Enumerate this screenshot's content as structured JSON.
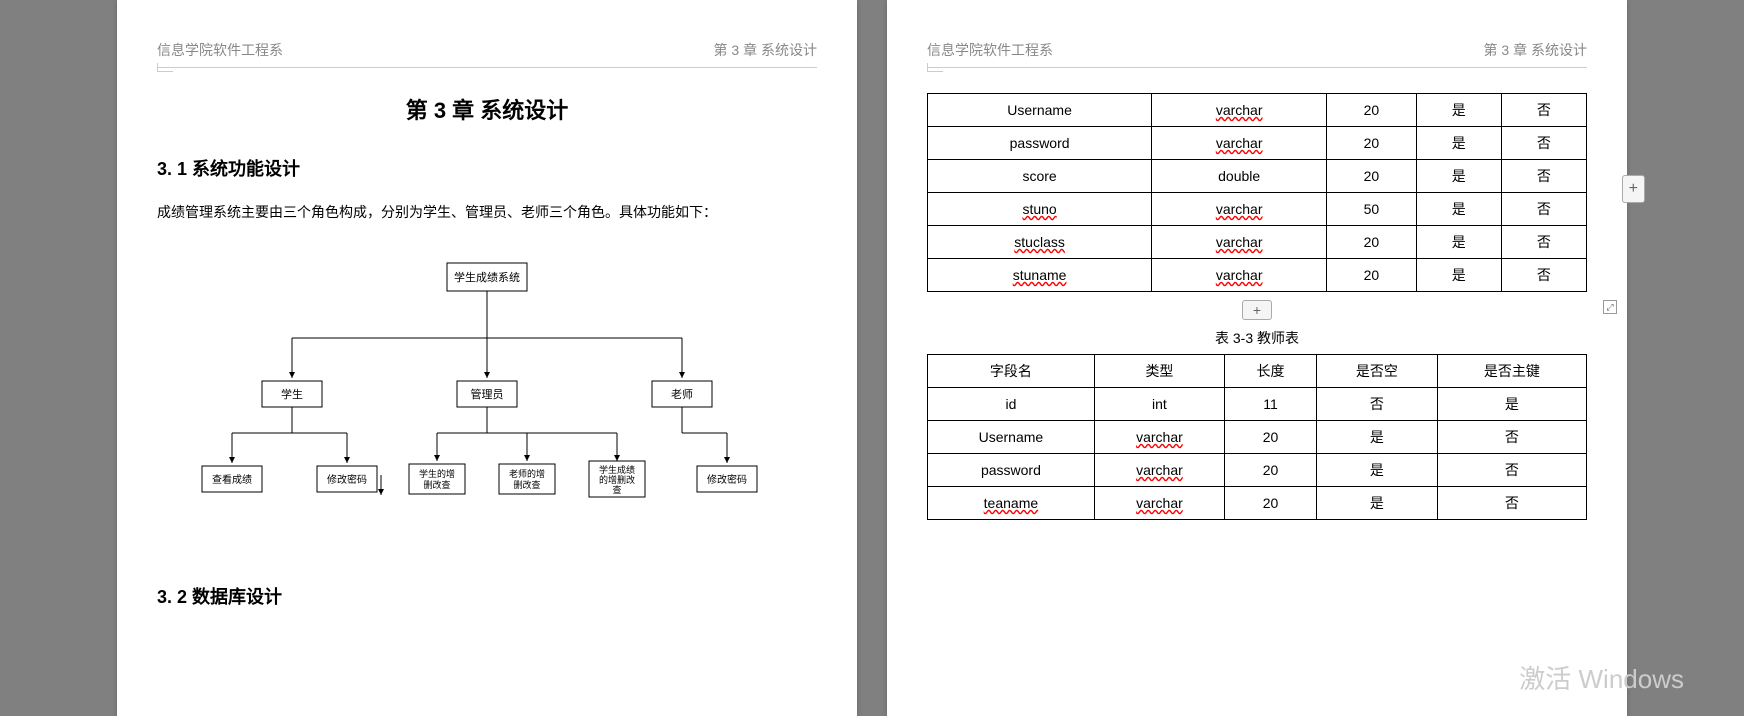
{
  "header": {
    "left": "信息学院软件工程系",
    "right": "第 3 章  系统设计"
  },
  "chapter_title": "第 3 章  系统设计",
  "section1_title": "3. 1 系统功能设计",
  "section1_body": "成绩管理系统主要由三个角色构成，分别为学生、管理员、老师三个角色。具体功能如下：",
  "section2_title": "3. 2 数据库设计",
  "flowchart": {
    "root": "学生成绩系统",
    "level2": [
      "学生",
      "管理员",
      "老师"
    ],
    "student_children": [
      "查看成绩",
      "修改密码"
    ],
    "admin_children": [
      "学生的增删改查",
      "老师的增删改查",
      "学生成绩的增删改查"
    ],
    "teacher_children": [
      "修改密码"
    ],
    "box_stroke": "#000000",
    "box_fill": "#ffffff",
    "line_color": "#000000",
    "font_size": 11
  },
  "table1": {
    "rows": [
      [
        "Username",
        "varchar",
        "20",
        "是",
        "否"
      ],
      [
        "password",
        "varchar",
        "20",
        "是",
        "否"
      ],
      [
        "score",
        "double",
        "20",
        "是",
        "否"
      ],
      [
        "stuno",
        "varchar",
        "50",
        "是",
        "否"
      ],
      [
        "stuclass",
        "varchar",
        "20",
        "是",
        "否"
      ],
      [
        "stuname",
        "varchar",
        "20",
        "是",
        "否"
      ]
    ],
    "underline_cols": [
      1
    ],
    "underline_rows_col0": [
      3,
      4,
      5
    ]
  },
  "table2": {
    "caption": "表 3-3 教师表",
    "headers": [
      "字段名",
      "类型",
      "长度",
      "是否空",
      "是否主键"
    ],
    "rows": [
      [
        "id",
        "int",
        "11",
        "否",
        "是"
      ],
      [
        "Username",
        "varchar",
        "20",
        "是",
        "否"
      ],
      [
        "password",
        "varchar",
        "20",
        "是",
        "否"
      ],
      [
        "teaname",
        "varchar",
        "20",
        "是",
        "否"
      ]
    ]
  },
  "add_btn_label": "+",
  "watermark": "激活 Windows"
}
